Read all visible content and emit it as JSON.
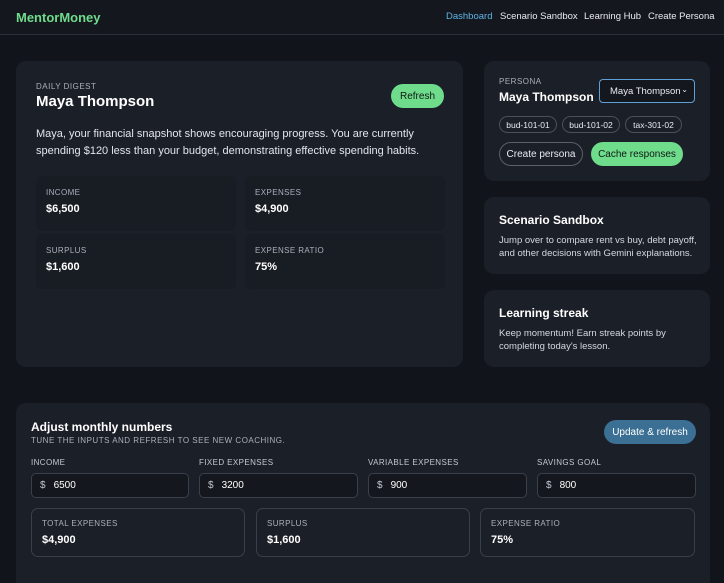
{
  "nav": {
    "brand": "MentorMoney",
    "links": [
      "Dashboard",
      "Scenario Sandbox",
      "Learning Hub",
      "Create Persona"
    ]
  },
  "digest": {
    "eyebrow": "DAILY DIGEST",
    "name": "Maya Thompson",
    "button": "Refresh",
    "summary": "Maya, your financial snapshot shows encouraging progress. You are currently spending $120 less than your budget, demonstrating effective spending habits.",
    "metrics": [
      {
        "label": "INCOME",
        "value": "$6,500"
      },
      {
        "label": "EXPENSES",
        "value": "$4,900"
      },
      {
        "label": "SURPLUS",
        "value": "$1,600"
      },
      {
        "label": "EXPENSE RATIO",
        "value": "75%"
      }
    ]
  },
  "persona": {
    "eyebrow": "PERSONA",
    "name": "Maya Thompson",
    "select": "Maya Thompson",
    "tags": [
      "bud-101-01",
      "bud-101-02",
      "tax-301-02"
    ],
    "buttons": [
      "Create persona",
      "Cache responses"
    ]
  },
  "cards": [
    {
      "title": "Scenario Sandbox",
      "text": "Jump over to compare rent vs buy, debt payoff, and other decisions with Gemini explanations."
    },
    {
      "title": "Learning streak",
      "text": "Keep momentum! Earn streak points by completing today's lesson."
    }
  ],
  "adjust": {
    "title": "Adjust monthly numbers",
    "subtitle": "TUNE THE INPUTS AND REFRESH TO SEE NEW COACHING.",
    "button": "Update & refresh",
    "inputs": [
      {
        "label": "INCOME",
        "prefix": "$",
        "value": "6500"
      },
      {
        "label": "FIXED EXPENSES",
        "prefix": "$",
        "value": "3200"
      },
      {
        "label": "VARIABLE EXPENSES",
        "prefix": "$",
        "value": "900"
      },
      {
        "label": "SAVINGS GOAL",
        "prefix": "$",
        "value": "800"
      }
    ],
    "totals": [
      {
        "label": "TOTAL EXPENSES",
        "value": "$4,900"
      },
      {
        "label": "SURPLUS",
        "value": "$1,600"
      },
      {
        "label": "EXPENSE RATIO",
        "value": "75%"
      }
    ]
  }
}
